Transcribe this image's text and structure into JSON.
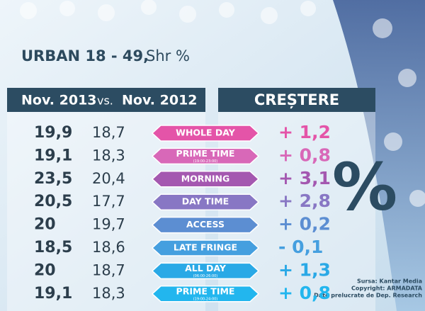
{
  "header": {
    "title": "URBAN 18 - 49,",
    "subtitle": "Shr %"
  },
  "table": {
    "columns": [
      "Nov. 2013",
      "vs.",
      "Nov. 2012",
      "CREȘTERE"
    ],
    "rows": [
      {
        "current": "19,9",
        "previous": "18,7",
        "label": "WHOLE DAY",
        "note": null,
        "change": "+ 1,2",
        "color": "#e454a8"
      },
      {
        "current": "19,1",
        "previous": "18,3",
        "label": "PRIME TIME",
        "note": "(19:00-23:00)",
        "change": "+ 0,8",
        "color": "#d868b8"
      },
      {
        "current": "23,5",
        "previous": "20,4",
        "label": "MORNING",
        "note": null,
        "change": "+ 3,1",
        "color": "#a458b0"
      },
      {
        "current": "20,5",
        "previous": "17,7",
        "label": "DAY TIME",
        "note": null,
        "change": "+ 2,8",
        "color": "#8877c4"
      },
      {
        "current": "20",
        "previous": "19,7",
        "label": "ACCESS",
        "note": null,
        "change": "+ 0,2",
        "color": "#5c8ed2"
      },
      {
        "current": "18,5",
        "previous": "18,6",
        "label": "LATE FRINGE",
        "note": null,
        "change": "- 0,1",
        "color": "#459fdf"
      },
      {
        "current": "20",
        "previous": "18,7",
        "label": "ALL DAY",
        "note": "(06:00-26:00)",
        "change": "+ 1,3",
        "color": "#2aa9e6"
      },
      {
        "current": "19,1",
        "previous": "18,3",
        "label": "PRIME TIME",
        "note": "(19:00-24:00)",
        "change": "+ 0,8",
        "color": "#22b6ee"
      }
    ]
  },
  "symbol": "%",
  "source": [
    "Sursa: Kantar Media",
    "Copyright: ARMADATA",
    "Date prelucrate de Dep. Research"
  ]
}
